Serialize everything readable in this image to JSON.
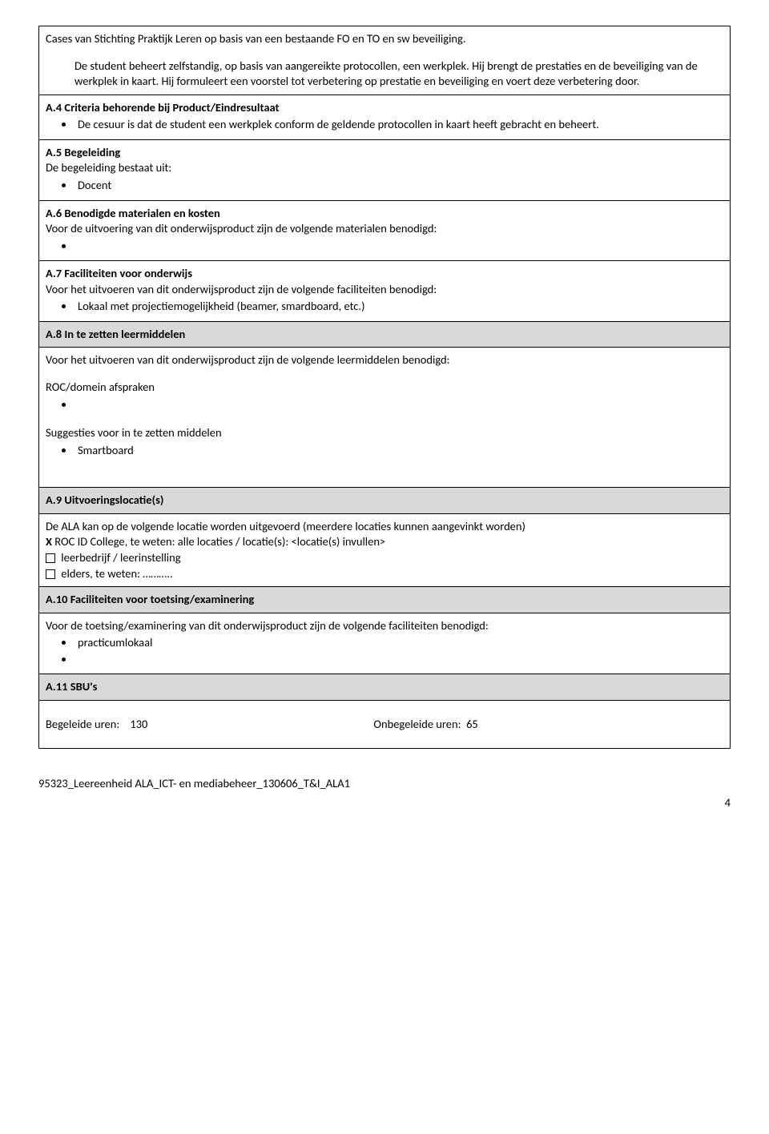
{
  "intro": {
    "line1": "Cases van Stichting Praktijk Leren op basis van een bestaande FO en TO en sw beveiliging.",
    "p1": "De student beheert zelfstandig, op basis van aangereikte protocollen, een werkplek. Hij brengt de prestaties en de beveiliging van de werkplek in kaart. Hij formuleert een voorstel tot verbetering op prestatie en beveiliging  en voert deze verbetering door."
  },
  "a4": {
    "title": "A.4 Criteria behorende bij Product/Eindresultaat",
    "bullet1": "De cesuur is dat de student een werkplek conform de geldende protocollen in kaart heeft gebracht en beheert."
  },
  "a5": {
    "title": "A.5 Begeleiding",
    "lead": "De begeleiding bestaat uit:",
    "bullet1": "Docent"
  },
  "a6": {
    "title": "A.6 Benodigde materialen en kosten",
    "lead": "Voor de uitvoering van dit onderwijsproduct zijn de volgende materialen benodigd:"
  },
  "a7": {
    "title": "A.7 Faciliteiten voor onderwijs",
    "lead": "Voor het uitvoeren van dit onderwijsproduct zijn de volgende faciliteiten benodigd:",
    "bullet1": "Lokaal met projectiemogelijkheid (beamer, smardboard, etc.)"
  },
  "a8": {
    "title": "A.8 In te zetten leermiddelen",
    "lead": "Voor het uitvoeren van dit onderwijsproduct zijn de volgende leermiddelen benodigd:",
    "sub1": "ROC/domein afspraken",
    "sub2": "Suggesties voor in te zetten middelen",
    "bullet1": "Smartboard"
  },
  "a9": {
    "title": "A.9 Uitvoeringslocatie(s)",
    "lead": "De ALA kan op de volgende locatie worden uitgevoerd (meerdere locaties kunnen aangevinkt worden)",
    "opt1_prefix": "X",
    "opt1": " ROC ID College, te weten: alle locaties / locatie(s): <locatie(s) invullen>",
    "opt2": " leerbedrijf / leerinstelling",
    "opt3": " elders, te weten: ……….."
  },
  "a10": {
    "title": "A.10 Faciliteiten voor toetsing/examinering",
    "lead": "Voor de toetsing/examinering  van dit onderwijsproduct zijn de volgende faciliteiten benodigd:",
    "bullet1": "practicumlokaal"
  },
  "a11": {
    "title": "A.11 SBU's",
    "col1_label": "Begeleide uren:",
    "col1_value": "130",
    "col2_label": "Onbegeleide uren:",
    "col2_value": "65"
  },
  "footer": {
    "text": "95323_Leereenheid ALA_ICT- en mediabeheer_130606_T&I_ALA1",
    "page": "4"
  },
  "colors": {
    "header_bg": "#d9d9d9",
    "border": "#000000",
    "text": "#000000",
    "page_bg": "#ffffff"
  }
}
